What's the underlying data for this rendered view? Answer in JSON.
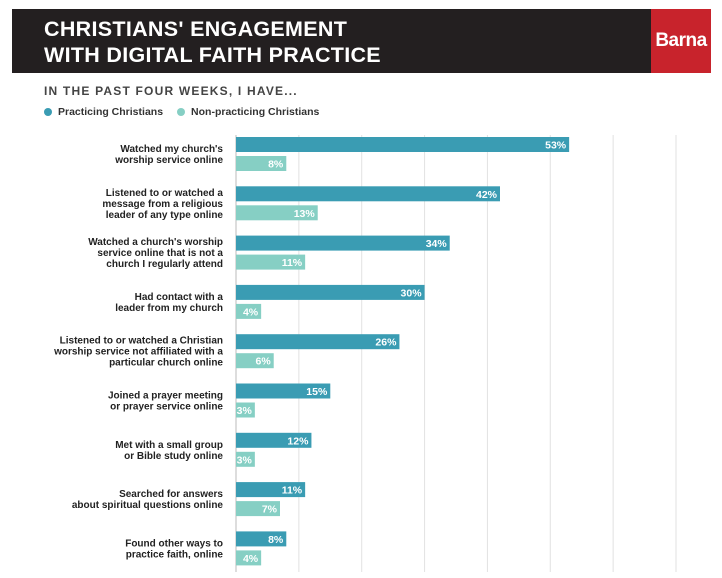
{
  "header": {
    "title_line1": "CHRISTIANS' ENGAGEMENT",
    "title_line2": "WITH DIGITAL FAITH PRACTICE",
    "logo": "Barna"
  },
  "chart_data": {
    "type": "bar",
    "orientation": "horizontal",
    "subtitle": "IN THE PAST FOUR WEEKS, I HAVE...",
    "categories": [
      [
        "Watched my church's",
        "worship service online"
      ],
      [
        "Listened to or watched a",
        "message from a religious",
        "leader of any type online"
      ],
      [
        "Watched a church's worship",
        "service online that is not a",
        "church I regularly attend"
      ],
      [
        "Had contact with a",
        "leader from my church"
      ],
      [
        "Listened to or watched a Christian",
        "worship service not affiliated with a",
        "particular church online"
      ],
      [
        "Joined a prayer meeting",
        "or prayer service online"
      ],
      [
        "Met with a small group",
        "or Bible study online"
      ],
      [
        "Searched for answers",
        "about spiritual questions online"
      ],
      [
        "Found other ways to",
        "practice faith, online"
      ]
    ],
    "series": [
      {
        "name": "Practicing Christians",
        "color": "#3a9cb3",
        "values": [
          53,
          42,
          34,
          30,
          26,
          15,
          12,
          11,
          8
        ]
      },
      {
        "name": "Non-practicing Christians",
        "color": "#86cfc4",
        "values": [
          8,
          13,
          11,
          4,
          6,
          3,
          3,
          7,
          4
        ]
      }
    ],
    "value_suffix": "%",
    "xlim": [
      0,
      70
    ],
    "grid": true,
    "legend_position": "top-left"
  }
}
